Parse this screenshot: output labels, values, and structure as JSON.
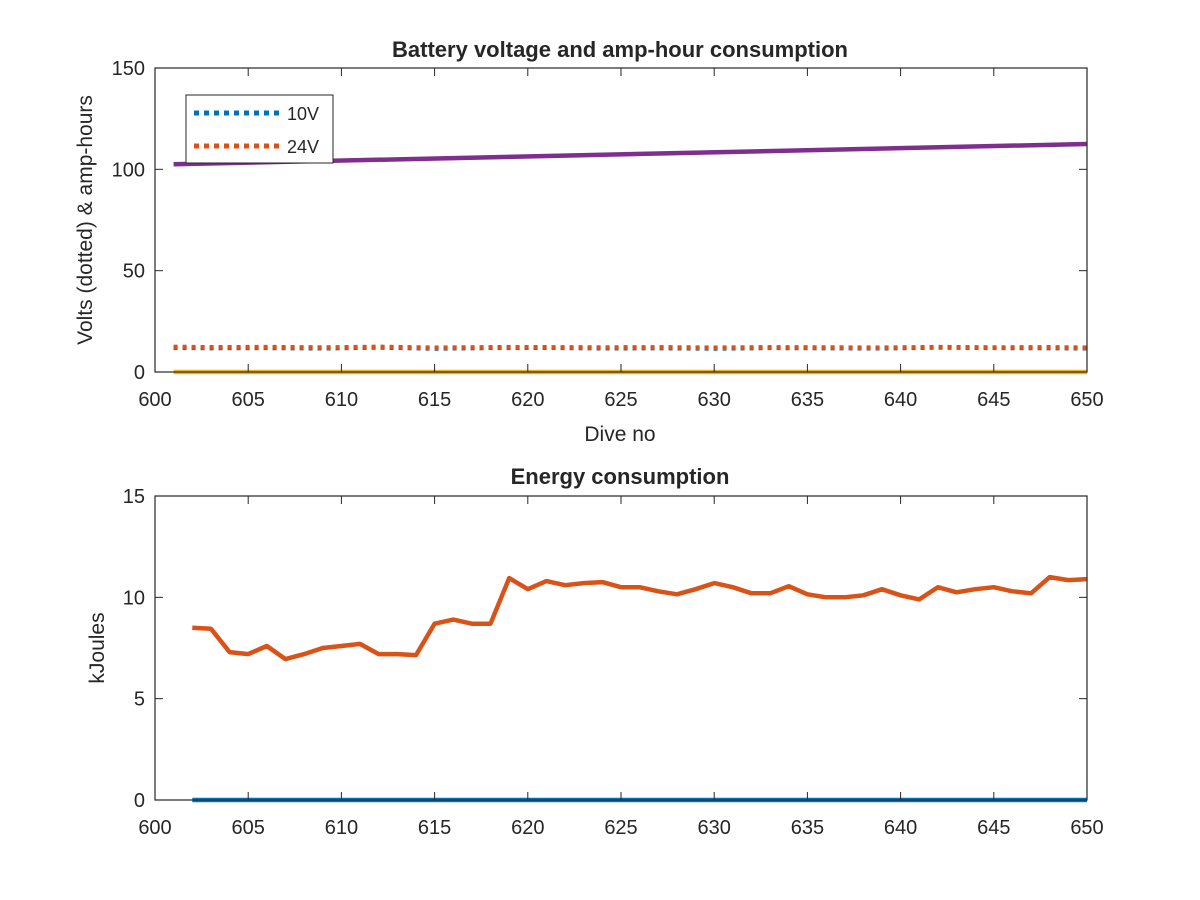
{
  "colors": {
    "blue": "#0072BD",
    "orange": "#D95319",
    "yellow": "#EDB120",
    "purple": "#7E2F8E",
    "axis": "#262626",
    "background": "#ffffff"
  },
  "chart_data": [
    {
      "type": "line",
      "title": "Battery voltage and amp-hour consumption",
      "xlabel": "Dive no",
      "ylabel": "Volts (dotted) & amp-hours",
      "xlim": [
        600,
        650
      ],
      "ylim": [
        0,
        150
      ],
      "xticks": [
        "600",
        "605",
        "610",
        "615",
        "620",
        "625",
        "630",
        "635",
        "640",
        "645",
        "650"
      ],
      "yticks": [
        "0",
        "50",
        "100",
        "150"
      ],
      "grid": false,
      "legend_position": "top-left",
      "legend": [
        "10V",
        "24V"
      ],
      "series": [
        {
          "name": "10V",
          "style": "dotted",
          "color": "blue",
          "x": [
            601,
            603,
            606,
            609,
            612,
            615,
            618,
            621,
            624,
            627,
            630,
            633,
            636,
            639,
            642,
            645,
            648,
            650
          ],
          "y": [
            12.0,
            11.8,
            11.9,
            11.7,
            12.1,
            11.6,
            11.9,
            12.0,
            11.7,
            11.8,
            11.6,
            11.9,
            11.8,
            11.7,
            12.1,
            11.9,
            11.8,
            11.7
          ]
        },
        {
          "name": "24V",
          "style": "dotted",
          "color": "orange",
          "x": [
            601,
            603,
            606,
            609,
            612,
            615,
            618,
            621,
            624,
            627,
            630,
            633,
            636,
            639,
            642,
            645,
            648,
            650
          ],
          "y": [
            12.4,
            12.2,
            12.3,
            12.1,
            12.4,
            12.0,
            12.2,
            12.2,
            12.1,
            12.2,
            12.0,
            12.2,
            12.1,
            12.0,
            12.3,
            12.1,
            12.2,
            12.0
          ]
        },
        {
          "style": "solid",
          "color": "purple",
          "x": [
            601,
            650
          ],
          "y": [
            102.5,
            112.5
          ]
        },
        {
          "style": "solid",
          "color": "yellow",
          "x": [
            601,
            650
          ],
          "y": [
            0,
            0
          ]
        }
      ]
    },
    {
      "type": "line",
      "title": "Energy consumption",
      "xlabel": "",
      "ylabel": "kJoules",
      "xlim": [
        600,
        650
      ],
      "ylim": [
        0,
        15
      ],
      "xticks": [
        "600",
        "605",
        "610",
        "615",
        "620",
        "625",
        "630",
        "635",
        "640",
        "645",
        "650"
      ],
      "yticks": [
        "0",
        "5",
        "10",
        "15"
      ],
      "grid": false,
      "series": [
        {
          "style": "solid",
          "color": "orange",
          "x": [
            602,
            603,
            604,
            605,
            606,
            607,
            608,
            609,
            610,
            611,
            612,
            613,
            614,
            615,
            616,
            617,
            618,
            619,
            620,
            621,
            622,
            623,
            624,
            625,
            626,
            627,
            628,
            629,
            630,
            631,
            632,
            633,
            634,
            635,
            636,
            637,
            638,
            639,
            640,
            641,
            642,
            643,
            644,
            645,
            646,
            647,
            648,
            649,
            650
          ],
          "y": [
            8.5,
            8.45,
            7.3,
            7.2,
            7.6,
            6.95,
            7.2,
            7.5,
            7.6,
            7.7,
            7.2,
            7.2,
            7.15,
            8.7,
            8.9,
            8.7,
            8.7,
            10.95,
            10.4,
            10.8,
            10.6,
            10.7,
            10.75,
            10.5,
            10.5,
            10.3,
            10.15,
            10.4,
            10.7,
            10.5,
            10.2,
            10.2,
            10.55,
            10.15,
            10.0,
            10.0,
            10.1,
            10.4,
            10.1,
            9.9,
            10.5,
            10.25,
            10.4,
            10.5,
            10.3,
            10.2,
            11.0,
            10.85,
            10.9
          ]
        },
        {
          "style": "solid",
          "color": "blue",
          "x": [
            602,
            650
          ],
          "y": [
            0,
            0
          ]
        }
      ]
    }
  ]
}
